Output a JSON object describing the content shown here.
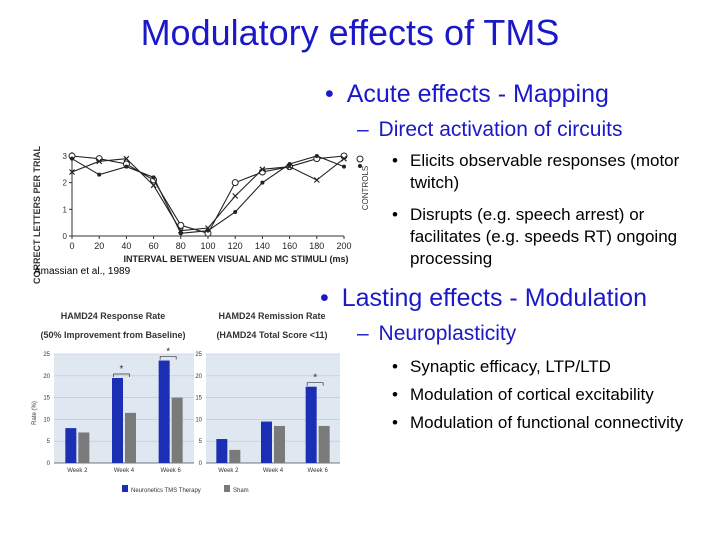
{
  "slide": {
    "title": "Modulatory effects of TMS",
    "bullet_glyph": "•",
    "dash_glyph": "–",
    "acute": "Acute effects - Mapping",
    "acute_sub": "Direct activation of circuits",
    "acute_items": [
      "Elicits observable responses (motor twitch)",
      "Disrupts (e.g. speech arrest) or facilitates (e.g. speeds RT) ongoing processing"
    ],
    "lasting": "Lasting effects - Modulation",
    "lasting_sub": "Neuroplasticity",
    "lasting_items": [
      "Synaptic efficacy, LTP/LTD",
      "Modulation of cortical excitability",
      "Modulation of functional connectivity"
    ]
  },
  "chart_data": [
    {
      "type": "line",
      "citation": "Amassian et al., 1989",
      "ylabel": "CORRECT LETTERS PER TRIAL",
      "xlabel": "INTERVAL BETWEEN VISUAL AND MC STIMULI (ms)",
      "right_label": "CONTROLS",
      "xlim": [
        0,
        200
      ],
      "ylim": [
        0,
        3
      ],
      "xticks": [
        "0",
        "20",
        "40",
        "60",
        "80",
        "100",
        "120",
        "140",
        "160",
        "180",
        "200"
      ],
      "yticks": [
        "0",
        "1",
        "2",
        "3"
      ],
      "series": [
        {
          "marker": "circle",
          "x": [
            0,
            20,
            40,
            60,
            80,
            100,
            120,
            140,
            160,
            180,
            200
          ],
          "y": [
            3,
            2.9,
            2.7,
            2.1,
            0.4,
            0.1,
            2.0,
            2.4,
            2.6,
            2.9,
            3
          ]
        },
        {
          "marker": "cross",
          "x": [
            0,
            20,
            40,
            60,
            80,
            100,
            120,
            140,
            160,
            180,
            200
          ],
          "y": [
            2.4,
            2.8,
            2.9,
            1.9,
            0.2,
            0.3,
            1.5,
            2.5,
            2.6,
            2.1,
            2.9
          ]
        },
        {
          "marker": "dot",
          "x": [
            0,
            20,
            40,
            60,
            80,
            100,
            120,
            140,
            160,
            180,
            200
          ],
          "y": [
            2.9,
            2.3,
            2.6,
            2.2,
            0.1,
            0.2,
            0.9,
            2.0,
            2.7,
            3,
            2.6
          ]
        }
      ]
    },
    {
      "type": "bar",
      "title": "HAMD24 Response Rate",
      "subtitle": "(50% Improvement from Baseline)",
      "ylabel": "Rate (%)",
      "ylim": [
        0,
        25
      ],
      "yticks": [
        "0",
        "5",
        "10",
        "15",
        "20",
        "25"
      ],
      "categories": [
        "Week 2",
        "Week 4",
        "Week 6"
      ],
      "series": [
        {
          "name": "Neuronetics TMS Therapy",
          "color": "#1b2fb5",
          "values": [
            8,
            19.5,
            23.5
          ]
        },
        {
          "name": "Sham",
          "color": "#7a7a7a",
          "values": [
            7,
            11.5,
            15
          ]
        }
      ],
      "significance": [
        "",
        "*",
        "*"
      ]
    },
    {
      "type": "bar",
      "title": "HAMD24 Remission Rate",
      "subtitle": "(HAMD24 Total Score <11)",
      "ylim": [
        0,
        25
      ],
      "yticks": [
        "0",
        "5",
        "10",
        "15",
        "20",
        "25"
      ],
      "categories": [
        "Week 2",
        "Week 4",
        "Week 6"
      ],
      "series": [
        {
          "name": "Neuronetics TMS Therapy",
          "color": "#1b2fb5",
          "values": [
            5.5,
            9.5,
            17.5
          ]
        },
        {
          "name": "Sham",
          "color": "#7a7a7a",
          "values": [
            3,
            8.5,
            8.5
          ]
        }
      ],
      "significance": [
        "",
        "",
        "*"
      ]
    }
  ]
}
